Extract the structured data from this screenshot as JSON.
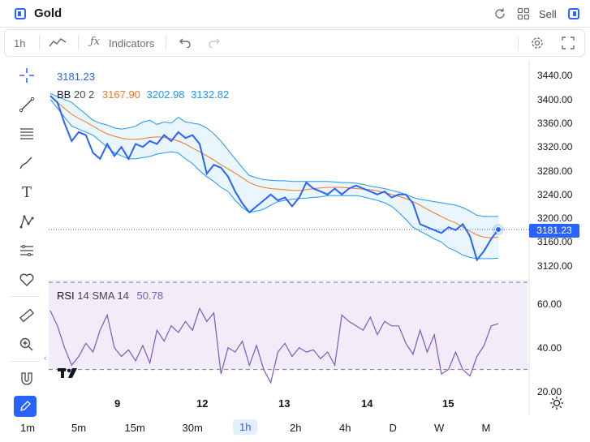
{
  "header": {
    "title": "Gold",
    "sell_label": "Sell"
  },
  "toolbar": {
    "interval": "1h",
    "indicators_label": "Indicators"
  },
  "legend": {
    "last_price": "3181.23",
    "bb_name": "BB",
    "bb_params": "20 2",
    "bb_basis": "3167.90",
    "bb_upper": "3202.98",
    "bb_lower": "3132.82",
    "rsi_name": "RSI",
    "rsi_params": "14 SMA 14",
    "rsi_value": "50.78"
  },
  "price_axis": {
    "ticks": [
      "3440.00",
      "3400.00",
      "3360.00",
      "3320.00",
      "3280.00",
      "3240.00",
      "3200.00",
      "3160.00",
      "3120.00"
    ],
    "current_price_tag": "3181.23"
  },
  "rsi_axis": {
    "ticks": [
      "60.00",
      "40.00",
      "20.00"
    ]
  },
  "time_axis": {
    "labels": [
      "9",
      "12",
      "13",
      "14",
      "15"
    ]
  },
  "timeframes": [
    "1m",
    "5m",
    "15m",
    "30m",
    "1h",
    "2h",
    "4h",
    "D",
    "W",
    "M"
  ],
  "active_timeframe": "1h",
  "colors": {
    "price_line": "#2962ff",
    "bb_basis": "#f7761f",
    "bb_bands": "#2196f3",
    "bb_fill": "#eaf6fd",
    "rsi_line": "#7e57c2",
    "rsi_band": "#f1ecf8"
  },
  "icons": [
    "chart-panel-icon",
    "refresh-icon",
    "grid-icon",
    "sidebar-icon",
    "line-style-icon",
    "fx-icon",
    "undo-icon",
    "redo-icon",
    "settings-icon",
    "fullscreen-icon",
    "crosshair-icon",
    "trendline-icon",
    "fib-icon",
    "brush-icon",
    "text-icon",
    "pattern-icon",
    "measure-tools-icon",
    "heart-icon",
    "ruler-icon",
    "zoom-icon",
    "magnet-icon",
    "draw-active-icon",
    "tradingview-logo",
    "sun-icon"
  ],
  "chart_data": [
    {
      "type": "line",
      "title": "",
      "y_range": [
        3110,
        3450
      ],
      "x_labels": [
        "9",
        "12",
        "13",
        "14",
        "15"
      ],
      "series": [
        {
          "name": "",
          "values": [
            3406,
            3395,
            3360,
            3330,
            3345,
            3340,
            3310,
            3300,
            3325,
            3305,
            3320,
            3300,
            3325,
            3320,
            3330,
            3325,
            3340,
            3330,
            3345,
            3335,
            3340,
            3325,
            3275,
            3290,
            3285,
            3270,
            3245,
            3225,
            3210,
            3220,
            3230,
            3240,
            3230,
            3235,
            3220,
            3235,
            3260,
            3250,
            3245,
            3240,
            3250,
            3240,
            3250,
            3255,
            3250,
            3245,
            3240,
            3245,
            3235,
            3240,
            3240,
            3225,
            3190,
            3185,
            3180,
            3175,
            3185,
            3180,
            3190,
            3170,
            3130,
            3145,
            3165,
            3181
          ]
        },
        {
          "name": "",
          "values": [
            3405,
            3395,
            3385,
            3375,
            3368,
            3362,
            3355,
            3348,
            3342,
            3338,
            3335,
            3333,
            3333,
            3334,
            3336,
            3337,
            3336,
            3334,
            3330,
            3325,
            3318,
            3312,
            3305,
            3298,
            3290,
            3283,
            3276,
            3268,
            3260,
            3255,
            3252,
            3250,
            3249,
            3248,
            3247,
            3247,
            3248,
            3250,
            3251,
            3252,
            3252,
            3252,
            3251,
            3250,
            3249,
            3248,
            3246,
            3243,
            3240,
            3237,
            3233,
            3228,
            3222,
            3215,
            3209,
            3203,
            3197,
            3192,
            3185,
            3178,
            3172,
            3168,
            3167,
            3168
          ]
        },
        {
          "name": "",
          "values": [
            3410,
            3405,
            3400,
            3395,
            3385,
            3375,
            3365,
            3360,
            3357,
            3352,
            3350,
            3352,
            3355,
            3362,
            3365,
            3358,
            3362,
            3360,
            3370,
            3362,
            3360,
            3358,
            3352,
            3342,
            3330,
            3315,
            3300,
            3285,
            3272,
            3268,
            3265,
            3264,
            3263,
            3263,
            3262,
            3262,
            3262,
            3262,
            3262,
            3262,
            3261,
            3260,
            3260,
            3259,
            3257,
            3254,
            3252,
            3250,
            3247,
            3244,
            3240,
            3235,
            3232,
            3230,
            3228,
            3226,
            3224,
            3222,
            3218,
            3212,
            3205,
            3203,
            3203,
            3203
          ]
        },
        {
          "name": "",
          "values": [
            3400,
            3385,
            3370,
            3355,
            3350,
            3345,
            3340,
            3330,
            3320,
            3310,
            3305,
            3300,
            3300,
            3302,
            3304,
            3308,
            3310,
            3312,
            3310,
            3300,
            3292,
            3280,
            3270,
            3262,
            3252,
            3245,
            3230,
            3218,
            3210,
            3212,
            3215,
            3222,
            3228,
            3230,
            3232,
            3233,
            3234,
            3235,
            3236,
            3238,
            3238,
            3238,
            3238,
            3238,
            3236,
            3233,
            3230,
            3226,
            3220,
            3210,
            3198,
            3185,
            3178,
            3172,
            3165,
            3160,
            3150,
            3145,
            3138,
            3134,
            3132,
            3132,
            3132,
            3133
          ]
        }
      ]
    },
    {
      "type": "line",
      "title": "",
      "y_range": [
        15,
        70
      ],
      "x_labels": [
        "9",
        "12",
        "13",
        "14",
        "15"
      ],
      "series": [
        {
          "name": "",
          "values": [
            57,
            50,
            40,
            32,
            36,
            42,
            38,
            48,
            55,
            40,
            36,
            39,
            34,
            41,
            33,
            48,
            43,
            50,
            47,
            52,
            48,
            58,
            52,
            56,
            28,
            40,
            38,
            43,
            32,
            41,
            30,
            24,
            38,
            42,
            36,
            40,
            38,
            39,
            35,
            38,
            32,
            55,
            52,
            50,
            48,
            54,
            46,
            52,
            50,
            50,
            42,
            37,
            48,
            38,
            46,
            28,
            30,
            38,
            30,
            27,
            36,
            41,
            50,
            51
          ]
        }
      ],
      "reference_levels": [
        70,
        30
      ]
    }
  ]
}
